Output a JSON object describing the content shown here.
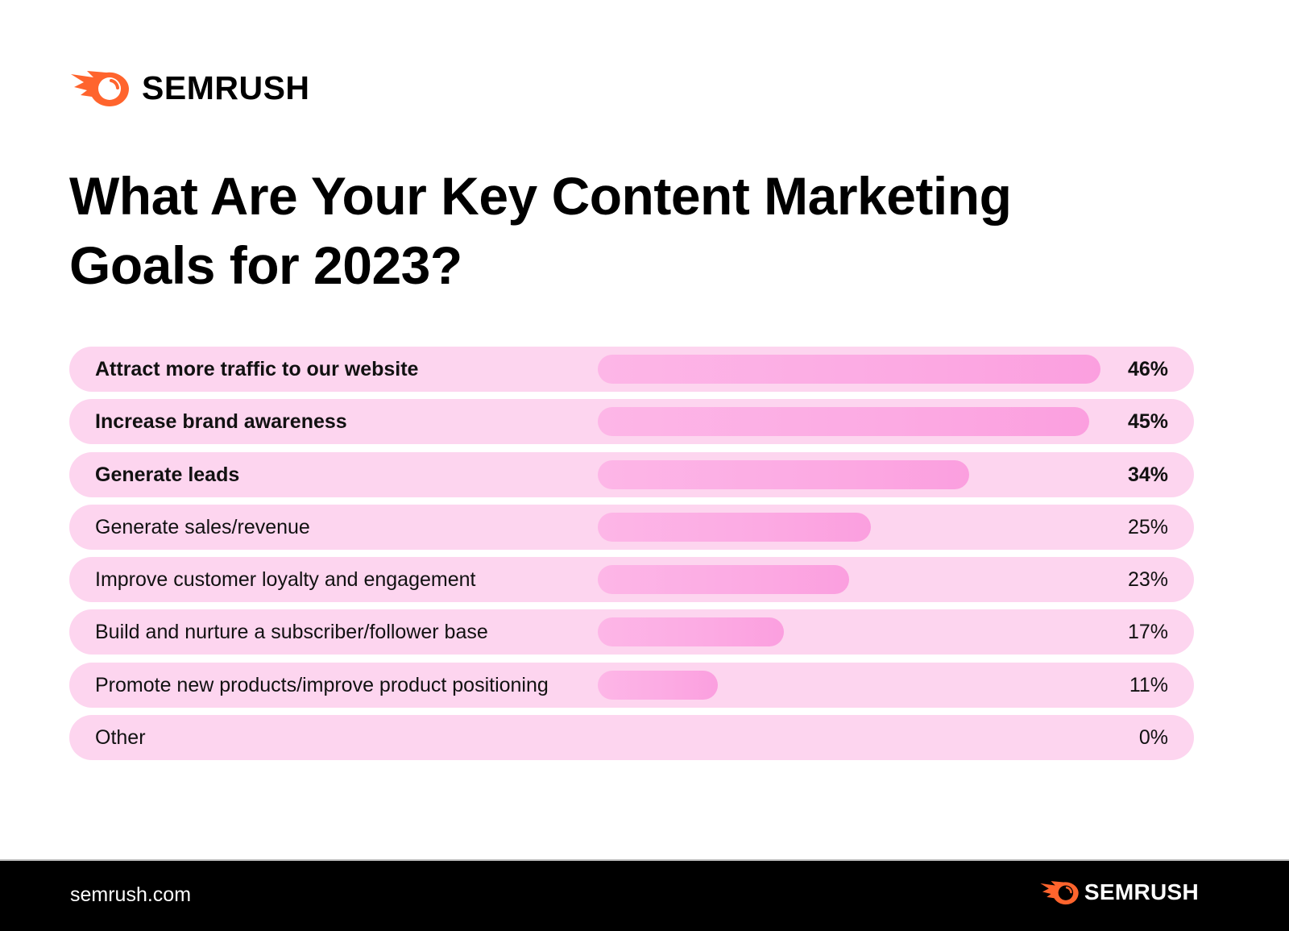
{
  "header": {
    "brand": "SEMRUSH",
    "logo_icon": "semrush-fireball-icon",
    "brand_color": "#ff642d"
  },
  "title_line1": "What Are Your Key Content Marketing",
  "title_line2": "Goals for 2023?",
  "colors": {
    "row_background": "#fdd5ef",
    "bar_gradient_start": "#fdb6e7",
    "bar_gradient_end": "#fb9fdf",
    "footer_background": "#000000"
  },
  "rows": [
    {
      "label": "Attract more traffic to our website",
      "value": 46,
      "value_label": "46%",
      "bold": true
    },
    {
      "label": "Increase brand awareness",
      "value": 45,
      "value_label": "45%",
      "bold": true
    },
    {
      "label": "Generate leads",
      "value": 34,
      "value_label": "34%",
      "bold": true
    },
    {
      "label": "Generate sales/revenue",
      "value": 25,
      "value_label": "25%",
      "bold": false
    },
    {
      "label": "Improve customer loyalty and engagement",
      "value": 23,
      "value_label": "23%",
      "bold": false
    },
    {
      "label": "Build and nurture a subscriber/follower base",
      "value": 17,
      "value_label": "17%",
      "bold": false
    },
    {
      "label": "Promote new products/improve product positioning",
      "value": 11,
      "value_label": "11%",
      "bold": false
    },
    {
      "label": "Other",
      "value": 0,
      "value_label": "0%",
      "bold": false
    }
  ],
  "footer": {
    "url": "semrush.com",
    "brand": "SEMRUSH"
  },
  "chart_data": {
    "type": "bar",
    "orientation": "horizontal",
    "title": "What Are Your Key Content Marketing Goals for 2023?",
    "categories": [
      "Attract more traffic to our website",
      "Increase brand awareness",
      "Generate leads",
      "Generate sales/revenue",
      "Improve customer loyalty and engagement",
      "Build and nurture a subscriber/follower base",
      "Promote new products/improve product positioning",
      "Other"
    ],
    "values": [
      46,
      45,
      34,
      25,
      23,
      17,
      11,
      0
    ],
    "unit": "%",
    "xlabel": "",
    "ylabel": "",
    "grid": false,
    "legend": null,
    "data_labels": [
      "46%",
      "45%",
      "34%",
      "25%",
      "23%",
      "17%",
      "11%",
      "0%"
    ]
  }
}
